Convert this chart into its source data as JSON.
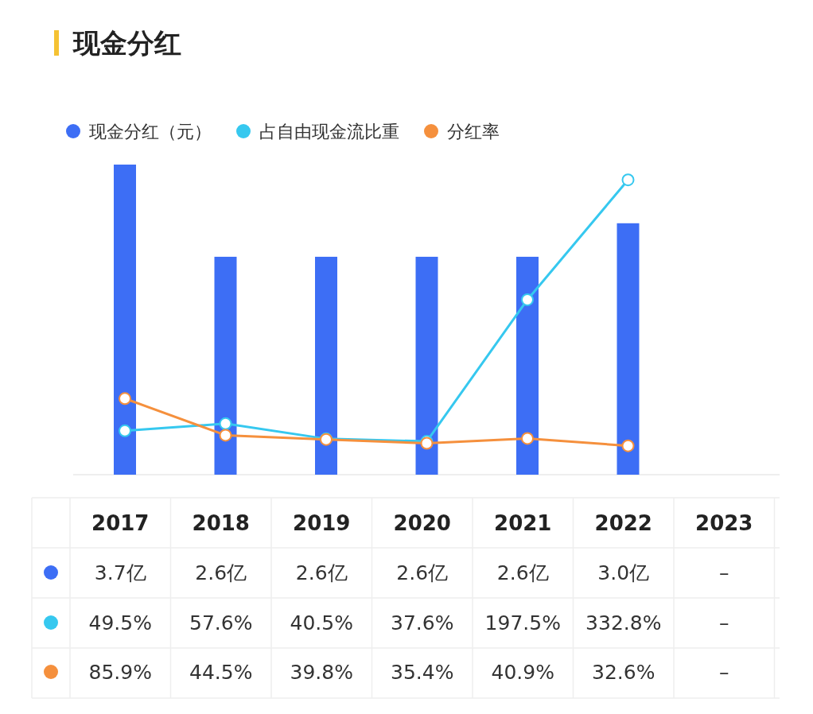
{
  "chart_data": {
    "type": "bar",
    "title": "现金分红",
    "categories": [
      "2017",
      "2018",
      "2019",
      "2020",
      "2021",
      "2022",
      "2023"
    ],
    "series": [
      {
        "name": "现金分红（元）",
        "color": "#3d6ef5",
        "values": [
          3.7,
          2.6,
          2.6,
          2.6,
          2.6,
          3.0,
          null
        ],
        "value_labels": [
          "3.7亿",
          "2.6亿",
          "2.6亿",
          "2.6亿",
          "2.6亿",
          "3.0亿",
          "–"
        ]
      },
      {
        "name": "占自由现金流比重",
        "type": "line",
        "axis": "y2",
        "color": "#36c8ef",
        "values": [
          49.5,
          57.6,
          40.5,
          37.6,
          197.5,
          332.8,
          null
        ],
        "value_labels": [
          "49.5%",
          "57.6%",
          "40.5%",
          "37.6%",
          "197.5%",
          "332.8%",
          "–"
        ]
      },
      {
        "name": "分红率",
        "type": "line",
        "axis": "y2",
        "color": "#f5903d",
        "values": [
          85.9,
          44.5,
          39.8,
          35.4,
          40.9,
          32.6,
          null
        ],
        "value_labels": [
          "85.9%",
          "44.5%",
          "39.8%",
          "35.4%",
          "40.9%",
          "32.6%",
          "–"
        ]
      }
    ],
    "ylim": [
      0,
      3.7
    ],
    "y2lim": [
      0,
      350
    ],
    "marker": "circle",
    "legend": "top left"
  }
}
